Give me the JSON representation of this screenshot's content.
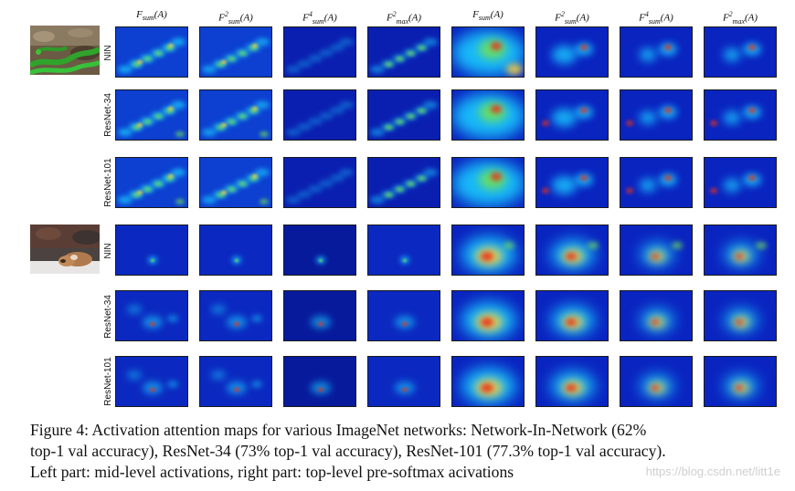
{
  "column_headers": [
    {
      "base": "F",
      "sub": "sum",
      "sup": "",
      "arg": "(A)"
    },
    {
      "base": "F",
      "sub": "sum",
      "sup": "2",
      "arg": "(A)"
    },
    {
      "base": "F",
      "sub": "sum",
      "sup": "4",
      "arg": "(A)"
    },
    {
      "base": "F",
      "sub": "max",
      "sup": "2",
      "arg": "(A)"
    },
    {
      "base": "F",
      "sub": "sum",
      "sup": "",
      "arg": "(A)"
    },
    {
      "base": "F",
      "sub": "sum",
      "sup": "2",
      "arg": "(A)"
    },
    {
      "base": "F",
      "sub": "sum",
      "sup": "4",
      "arg": "(A)"
    },
    {
      "base": "F",
      "sub": "max",
      "sup": "2",
      "arg": "(A)"
    }
  ],
  "row_labels": [
    "NIN",
    "ResNet-34",
    "ResNet-101",
    "NIN",
    "ResNet-34",
    "ResNet-101"
  ],
  "caption": {
    "line1": "Figure 4: Activation attention maps for various ImageNet networks: Network-In-Network (62%",
    "line2": "top-1 val accuracy), ResNet-34 (73% top-1 val accuracy), ResNet-101 (77.3% top-1 val accuracy).",
    "line3": "Left part: mid-level activations, right part: top-level pre-softmax acivations"
  },
  "watermark": "https://blog.csdn.net/litt1e",
  "colors": {
    "map_background": "#07158f",
    "heat_low": "#0b2fd8",
    "heat_mid": "#19c9ff",
    "heat_green": "#6fe05a",
    "heat_yellow": "#ffd23a",
    "heat_red": "#e8321c",
    "frame": "#1a1a1a"
  },
  "images": [
    {
      "id": "snake",
      "description_icon": "snake-photo"
    },
    {
      "id": "fox",
      "description_icon": "fox-photo"
    }
  ]
}
